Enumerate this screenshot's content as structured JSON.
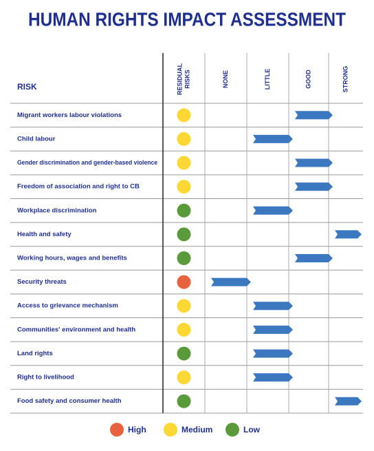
{
  "title": "HUMAN RIGHTS IMPACT ASSESSMENT",
  "table": {
    "header": [
      "RISK",
      [
        "RESIDUAL",
        "RISKS"
      ],
      "NONE",
      "LITTLE",
      "GOOD",
      "STRONG"
    ],
    "rows": [
      {
        "risk": "Migrant workers labour violations",
        "residual": "Medium",
        "mitigation": "GOOD"
      },
      {
        "risk": "Child labour",
        "residual": "Medium",
        "mitigation": "LITTLE"
      },
      {
        "risk": "Gender discrimination and gender-based violence",
        "residual": "Medium",
        "mitigation": "GOOD"
      },
      {
        "risk": "Freedom of association and right to CB",
        "residual": "Medium",
        "mitigation": "GOOD"
      },
      {
        "risk": "Workplace discrimination",
        "residual": "Low",
        "mitigation": "LITTLE"
      },
      {
        "risk": "Health and safety",
        "residual": "Low",
        "mitigation": "STRONG"
      },
      {
        "risk": "Working hours, wages and benefits",
        "residual": "Low",
        "mitigation": "GOOD"
      },
      {
        "risk": "Security threats",
        "residual": "High",
        "mitigation": "NONE"
      },
      {
        "risk": "Access to grievance mechanism",
        "residual": "Medium",
        "mitigation": "LITTLE"
      },
      {
        "risk": "Communities' environment and health",
        "residual": "Medium",
        "mitigation": "LITTLE"
      },
      {
        "risk": "Land rights",
        "residual": "Low",
        "mitigation": "LITTLE"
      },
      {
        "risk": "Right to livelihood",
        "residual": "Medium",
        "mitigation": "LITTLE"
      },
      {
        "risk": "Food safety and consumer health",
        "residual": "Low",
        "mitigation": "STRONG"
      }
    ]
  },
  "legend": [
    {
      "label": "High",
      "color": "#e8623f"
    },
    {
      "label": "Medium",
      "color": "#fdd835"
    },
    {
      "label": "Low",
      "color": "#5b9a3a"
    }
  ],
  "arrow_color": "#3b78c0"
}
